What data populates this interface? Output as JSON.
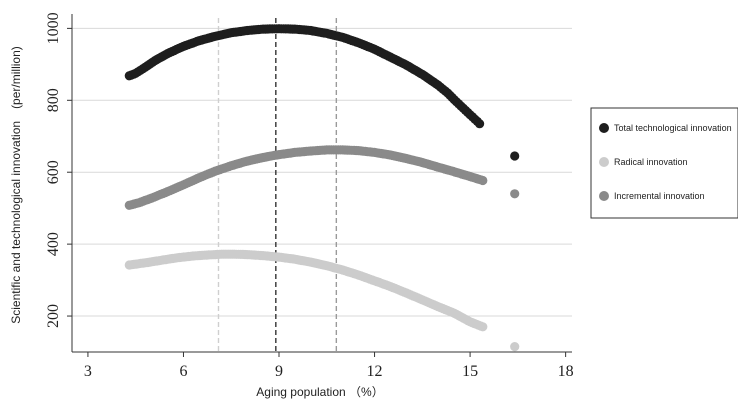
{
  "chart_data": {
    "type": "scatter",
    "xlabel": "Aging population （%）",
    "ylabel": "Scientific and technological innovation　(per/million)",
    "xlim": [
      2.5,
      18.2
    ],
    "ylim": [
      100,
      1040
    ],
    "xticks": [
      3,
      6,
      9,
      12,
      15,
      18
    ],
    "yticks": [
      200,
      400,
      600,
      800,
      1000
    ],
    "grid": "horizontal",
    "legend_position": "right",
    "vertical_lines": [
      {
        "x": 7.1,
        "color": "#cfcfcf",
        "style": "dashed"
      },
      {
        "x": 8.9,
        "color": "#333333",
        "style": "dashed"
      },
      {
        "x": 10.8,
        "color": "#9a9a9a",
        "style": "dashed"
      }
    ],
    "series": [
      {
        "name": "Total technological innovation",
        "color": "#1e1e1e",
        "points": [
          [
            4.3,
            868
          ],
          [
            4.5,
            875
          ],
          [
            4.8,
            892
          ],
          [
            5.1,
            910
          ],
          [
            5.5,
            930
          ],
          [
            6.0,
            950
          ],
          [
            6.5,
            966
          ],
          [
            7.0,
            978
          ],
          [
            7.5,
            988
          ],
          [
            8.0,
            994
          ],
          [
            8.5,
            998
          ],
          [
            9.0,
            999
          ],
          [
            9.5,
            998
          ],
          [
            10.0,
            994
          ],
          [
            10.5,
            986
          ],
          [
            11.0,
            975
          ],
          [
            11.5,
            960
          ],
          [
            12.0,
            942
          ],
          [
            12.5,
            920
          ],
          [
            13.0,
            898
          ],
          [
            13.5,
            872
          ],
          [
            14.0,
            842
          ],
          [
            14.3,
            820
          ],
          [
            14.5,
            802
          ],
          [
            15.0,
            760
          ],
          [
            15.3,
            735
          ],
          [
            16.4,
            645
          ]
        ]
      },
      {
        "name": "Radical innovation",
        "color": "#cccccc",
        "points": [
          [
            4.3,
            342
          ],
          [
            4.8,
            348
          ],
          [
            5.3,
            355
          ],
          [
            5.8,
            362
          ],
          [
            6.3,
            367
          ],
          [
            6.8,
            370
          ],
          [
            7.2,
            372
          ],
          [
            7.6,
            372
          ],
          [
            8.0,
            371
          ],
          [
            8.5,
            368
          ],
          [
            9.0,
            364
          ],
          [
            9.5,
            358
          ],
          [
            10.0,
            350
          ],
          [
            10.5,
            340
          ],
          [
            11.0,
            328
          ],
          [
            11.5,
            314
          ],
          [
            12.0,
            298
          ],
          [
            12.5,
            282
          ],
          [
            13.0,
            264
          ],
          [
            13.5,
            245
          ],
          [
            14.0,
            226
          ],
          [
            14.5,
            208
          ],
          [
            15.0,
            184
          ],
          [
            15.4,
            170
          ],
          [
            16.4,
            115
          ]
        ]
      },
      {
        "name": "Incremental innovation",
        "color": "#8a8a8a",
        "points": [
          [
            4.3,
            508
          ],
          [
            4.6,
            515
          ],
          [
            5.0,
            528
          ],
          [
            5.5,
            546
          ],
          [
            6.0,
            565
          ],
          [
            6.5,
            585
          ],
          [
            7.0,
            603
          ],
          [
            7.5,
            618
          ],
          [
            8.0,
            631
          ],
          [
            8.5,
            641
          ],
          [
            9.0,
            649
          ],
          [
            9.5,
            655
          ],
          [
            10.0,
            659
          ],
          [
            10.5,
            662
          ],
          [
            11.0,
            662
          ],
          [
            11.5,
            660
          ],
          [
            12.0,
            655
          ],
          [
            12.5,
            648
          ],
          [
            13.0,
            638
          ],
          [
            13.5,
            627
          ],
          [
            14.0,
            614
          ],
          [
            14.4,
            604
          ],
          [
            15.0,
            588
          ],
          [
            15.4,
            577
          ],
          [
            16.4,
            540
          ]
        ]
      }
    ]
  }
}
